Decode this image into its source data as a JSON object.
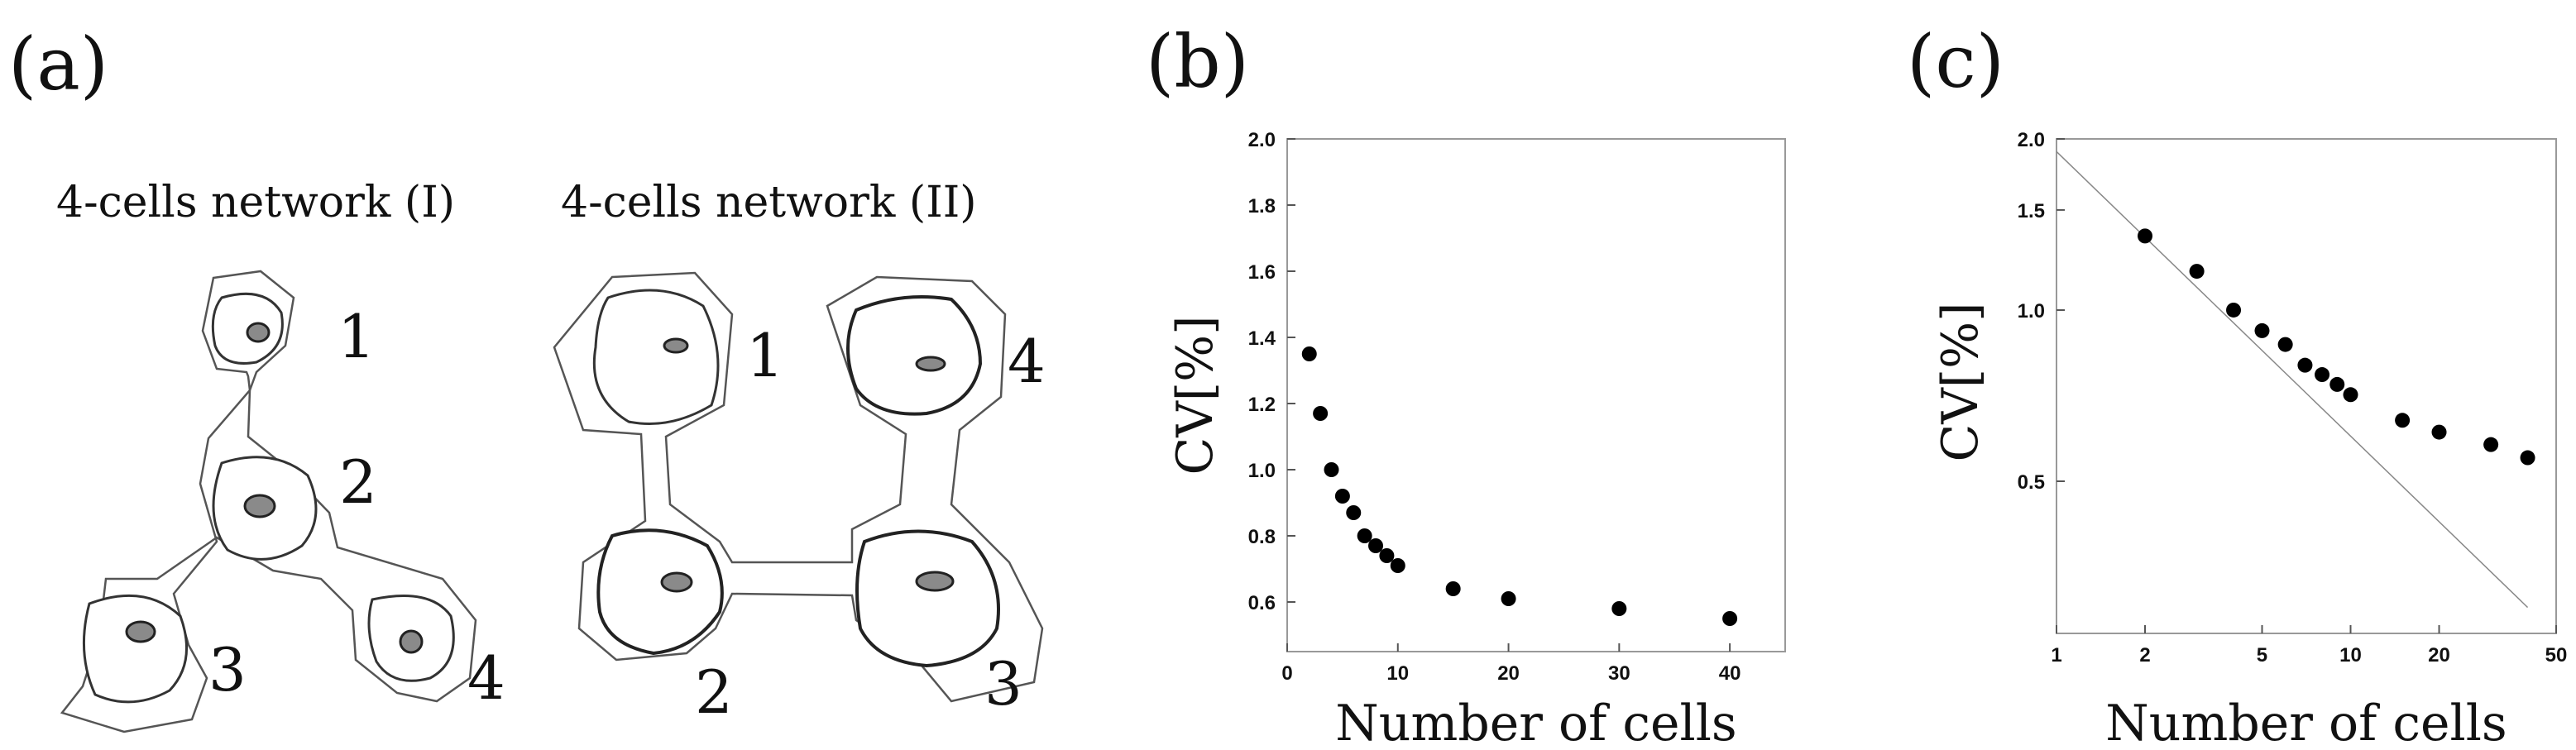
{
  "panel_a": {
    "label": "(a)",
    "network1": {
      "title": "4-cells network (I)",
      "cells": [
        "1",
        "2",
        "3",
        "4"
      ]
    },
    "network2": {
      "title": "4-cells network (II)",
      "cells": [
        "1",
        "2",
        "3",
        "4"
      ]
    }
  },
  "chart_data": [
    {
      "panel": "(b)",
      "type": "scatter",
      "xlabel": "Number of cells",
      "ylabel": "CV[%]",
      "xlim": [
        0,
        45
      ],
      "ylim": [
        0.45,
        2.0
      ],
      "xticks": [
        0,
        10,
        20,
        30,
        40
      ],
      "xtick_labels": [
        "0",
        "10",
        "20",
        "30",
        "40"
      ],
      "yticks": [
        0.6,
        0.8,
        1.0,
        1.2,
        1.4,
        1.6,
        1.8,
        2.0
      ],
      "ytick_labels": [
        "0.6",
        "0.8",
        "1.0",
        "1.2",
        "1.4",
        "1.6",
        "1.8",
        "2.0"
      ],
      "x": [
        2,
        3,
        4,
        5,
        6,
        7,
        8,
        9,
        10,
        15,
        20,
        30,
        40
      ],
      "y": [
        1.35,
        1.17,
        1.0,
        0.92,
        0.87,
        0.8,
        0.77,
        0.74,
        0.71,
        0.64,
        0.61,
        0.58,
        0.55
      ]
    },
    {
      "panel": "(c)",
      "type": "scatter",
      "scale": "log-log",
      "xlabel": "Number of cells",
      "ylabel": "CV[%]",
      "xlim": [
        1,
        50
      ],
      "ylim": [
        0.27,
        2.0
      ],
      "xticks": [
        1,
        2,
        5,
        10,
        20,
        50
      ],
      "xtick_labels": [
        "1",
        "2",
        "5",
        "10",
        "20",
        "50"
      ],
      "yticks": [
        0.5,
        1.0,
        1.5,
        2.0
      ],
      "ytick_labels": [
        "0.5",
        "1.0",
        "1.5",
        "2.0"
      ],
      "x": [
        2,
        3,
        4,
        5,
        6,
        7,
        8,
        9,
        10,
        15,
        20,
        30,
        40
      ],
      "y": [
        1.35,
        1.17,
        1.0,
        0.92,
        0.87,
        0.8,
        0.77,
        0.74,
        0.71,
        0.64,
        0.61,
        0.58,
        0.55
      ],
      "reference_line": {
        "x": [
          1,
          40
        ],
        "y": [
          1.9,
          0.3
        ],
        "label": ""
      }
    }
  ]
}
